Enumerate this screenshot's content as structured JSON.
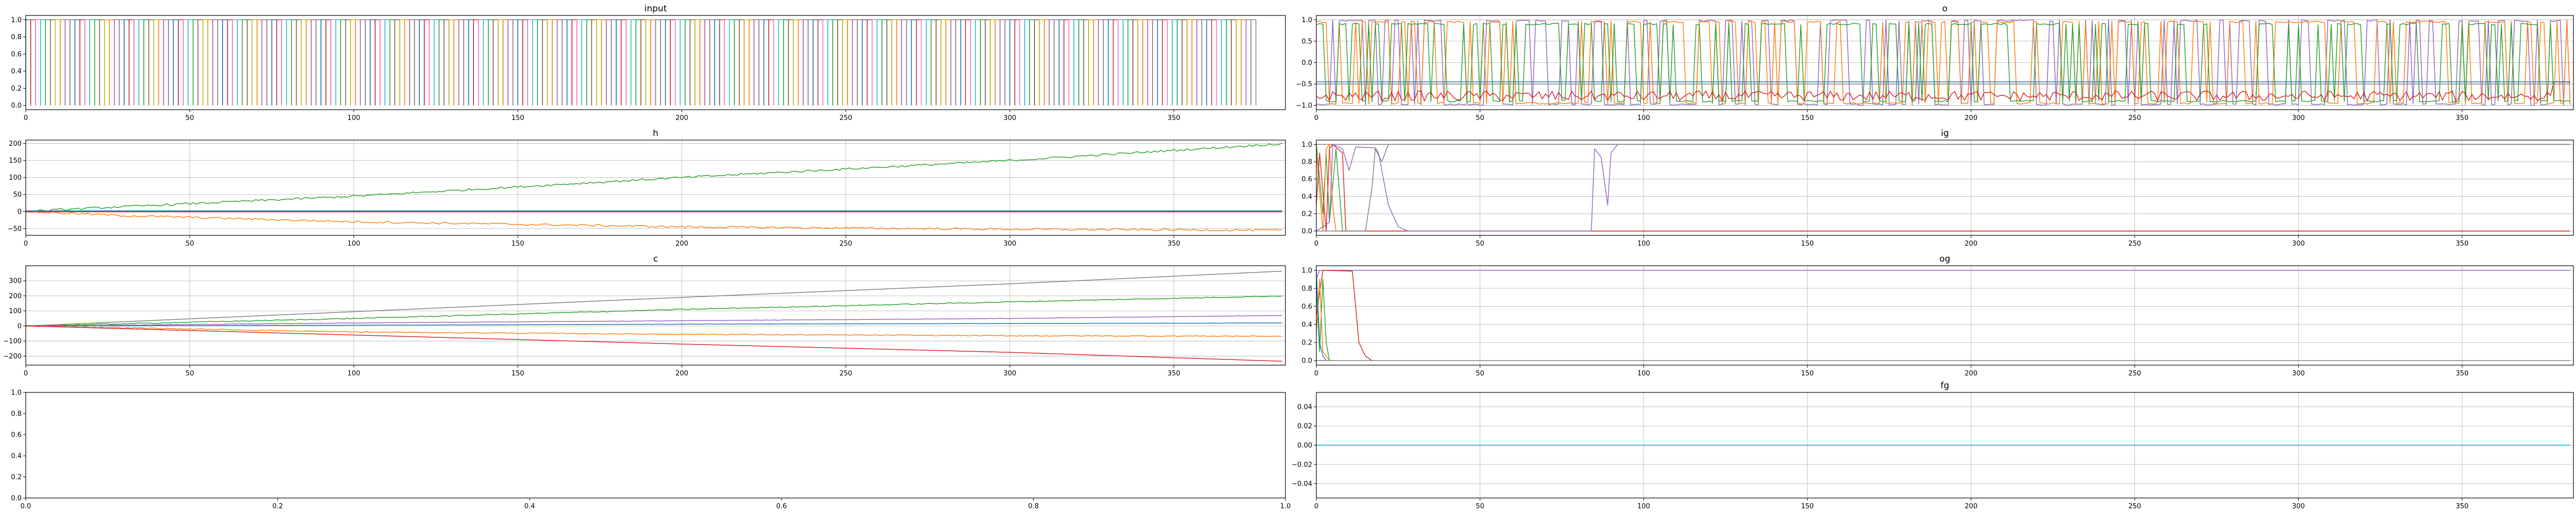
{
  "palette": {
    "c0": "#1f77b4",
    "c1": "#ff7f0e",
    "c2": "#2ca02c",
    "c3": "#d62728",
    "c4": "#9467bd",
    "c5": "#8c564b",
    "c6": "#e377c2",
    "c7": "#7f7f7f",
    "c8": "#bcbd22",
    "c9": "#17becf"
  },
  "chart_data": [
    {
      "id": "input",
      "type": "line",
      "title": "input",
      "grid": false,
      "xlim": [
        0,
        384
      ],
      "ylim": [
        -0.05,
        1.05
      ],
      "xticks": [
        0,
        50,
        100,
        150,
        200,
        250,
        300,
        350
      ],
      "yticks": [
        0.0,
        0.2,
        0.4,
        0.6,
        0.8,
        1.0
      ],
      "ytick_labels": [
        "0.0",
        "0.2",
        "0.4",
        "0.6",
        "0.8",
        "1.0"
      ],
      "series": [
        {
          "pattern": "one_hot_pulses",
          "x_range": [
            0,
            375
          ],
          "value_range": [
            0,
            1
          ],
          "count": 10
        }
      ]
    },
    {
      "id": "o",
      "type": "line",
      "title": "o",
      "grid": true,
      "xlim": [
        0,
        384
      ],
      "ylim": [
        -1.1,
        1.1
      ],
      "xticks": [
        0,
        50,
        100,
        150,
        200,
        250,
        300,
        350
      ],
      "yticks": [
        -1.0,
        -0.5,
        0.0,
        0.5,
        1.0
      ],
      "ytick_labels": [
        "−1.0",
        "−0.5",
        "0.0",
        "0.5",
        "1.0"
      ],
      "series": [
        {
          "pattern": "square_noise",
          "levels": [
            -0.98,
            0.98
          ],
          "color": "c4"
        },
        {
          "pattern": "square_noise",
          "levels": [
            -0.95,
            0.95
          ],
          "color": "c1"
        },
        {
          "pattern": "square_noise",
          "levels": [
            -0.9,
            0.9
          ],
          "color": "c2"
        },
        {
          "pattern": "noise",
          "base": -0.78,
          "amp": 0.12,
          "end": -0.45,
          "color": "c3"
        },
        {
          "pattern": "flat",
          "value": -0.45,
          "color": "c0"
        },
        {
          "pattern": "flat",
          "value": -0.5,
          "color": "c7"
        }
      ]
    },
    {
      "id": "h",
      "type": "line",
      "title": "h",
      "grid": true,
      "xlim": [
        0,
        384
      ],
      "ylim": [
        -70,
        210
      ],
      "xticks": [
        0,
        50,
        100,
        150,
        200,
        250,
        300,
        350
      ],
      "yticks": [
        -50,
        0,
        50,
        100,
        150,
        200
      ],
      "ytick_labels": [
        "−50",
        "0",
        "50",
        "100",
        "150",
        "200"
      ],
      "series": [
        {
          "pattern": "trend",
          "points": [
            [
              0,
              0
            ],
            [
              20,
              10
            ],
            [
              100,
              45
            ],
            [
              200,
              100
            ],
            [
              300,
              150
            ],
            [
              384,
              200
            ]
          ],
          "noise": 3,
          "color": "c2"
        },
        {
          "pattern": "trend",
          "points": [
            [
              0,
              0
            ],
            [
              30,
              -12
            ],
            [
              100,
              -30
            ],
            [
              200,
              -45
            ],
            [
              300,
              -52
            ],
            [
              384,
              -55
            ]
          ],
          "noise": 3,
          "color": "c1"
        },
        {
          "pattern": "flat",
          "value": 2,
          "color": "c0"
        },
        {
          "pattern": "flat",
          "value": 0,
          "color": "c4"
        },
        {
          "pattern": "flat",
          "value": -1,
          "color": "c3"
        }
      ]
    },
    {
      "id": "ig",
      "type": "line",
      "title": "ig",
      "grid": true,
      "xlim": [
        0,
        384
      ],
      "ylim": [
        -0.05,
        1.05
      ],
      "xticks": [
        0,
        50,
        100,
        150,
        200,
        250,
        300,
        350
      ],
      "yticks": [
        0.0,
        0.2,
        0.4,
        0.6,
        0.8,
        1.0
      ],
      "ytick_labels": [
        "0.0",
        "0.2",
        "0.4",
        "0.6",
        "0.8",
        "1.0"
      ],
      "series": [
        {
          "pattern": "flat",
          "value": 1.0,
          "color": "c7"
        },
        {
          "pattern": "trend",
          "points": [
            [
              0,
              1
            ],
            [
              2,
              0.2
            ],
            [
              3,
              0.9
            ],
            [
              4,
              0.1
            ],
            [
              6,
              0.95
            ],
            [
              8,
              0
            ],
            [
              384,
              0
            ]
          ],
          "noise": 0,
          "color": "c2"
        },
        {
          "pattern": "trend",
          "points": [
            [
              0,
              0.9
            ],
            [
              2,
              0
            ],
            [
              3,
              0.95
            ],
            [
              4,
              1
            ],
            [
              5,
              0.3
            ],
            [
              6,
              0
            ],
            [
              384,
              0
            ]
          ],
          "noise": 0,
          "color": "c1"
        },
        {
          "pattern": "trend",
          "points": [
            [
              0,
              0.3
            ],
            [
              1,
              0.9
            ],
            [
              3,
              0
            ],
            [
              4,
              0.95
            ],
            [
              5,
              1
            ],
            [
              8,
              0.9
            ],
            [
              9,
              0
            ],
            [
              384,
              0
            ]
          ],
          "noise": 0,
          "color": "c3"
        },
        {
          "pattern": "trend",
          "points": [
            [
              0,
              0
            ],
            [
              4,
              0.1
            ],
            [
              5,
              1
            ],
            [
              8,
              0.95
            ],
            [
              10,
              0.7
            ],
            [
              12,
              0.97
            ],
            [
              18,
              0.96
            ],
            [
              19,
              0.9
            ],
            [
              22,
              0.3
            ],
            [
              25,
              0.05
            ],
            [
              28,
              0
            ],
            [
              84,
              0
            ],
            [
              85,
              0.95
            ],
            [
              87,
              0.85
            ],
            [
              89,
              0.3
            ],
            [
              90,
              0.9
            ],
            [
              92,
              1
            ],
            [
              384,
              1
            ]
          ],
          "noise": 0,
          "color": "c4"
        },
        {
          "pattern": "trend",
          "points": [
            [
              0,
              0
            ],
            [
              15,
              0
            ],
            [
              17,
              0.5
            ],
            [
              18,
              0.95
            ],
            [
              20,
              0.8
            ],
            [
              22,
              1
            ],
            [
              24,
              1
            ],
            [
              384,
              1
            ]
          ],
          "noise": 0,
          "color": "c7"
        }
      ]
    },
    {
      "id": "c",
      "type": "line",
      "title": "c",
      "grid": true,
      "xlim": [
        0,
        384
      ],
      "ylim": [
        -260,
        400
      ],
      "xticks": [
        0,
        50,
        100,
        150,
        200,
        250,
        300,
        350
      ],
      "yticks": [
        -200,
        -100,
        0,
        100,
        200,
        300
      ],
      "ytick_labels": [
        "−200",
        "−100",
        "0",
        "100",
        "200",
        "300"
      ],
      "series": [
        {
          "pattern": "trend",
          "points": [
            [
              0,
              0
            ],
            [
              100,
              95
            ],
            [
              200,
              190
            ],
            [
              300,
              280
            ],
            [
              384,
              365
            ]
          ],
          "noise": 0,
          "color": "c7"
        },
        {
          "pattern": "trend",
          "points": [
            [
              0,
              0
            ],
            [
              100,
              50
            ],
            [
              200,
              110
            ],
            [
              300,
              160
            ],
            [
              384,
              200
            ]
          ],
          "noise": 3,
          "color": "c2"
        },
        {
          "pattern": "trend",
          "points": [
            [
              0,
              0
            ],
            [
              100,
              20
            ],
            [
              200,
              35
            ],
            [
              300,
              50
            ],
            [
              384,
              70
            ]
          ],
          "noise": 1,
          "color": "c4"
        },
        {
          "pattern": "trend",
          "points": [
            [
              0,
              0
            ],
            [
              100,
              5
            ],
            [
              200,
              12
            ],
            [
              384,
              20
            ]
          ],
          "noise": 0.5,
          "color": "c0"
        },
        {
          "pattern": "trend",
          "points": [
            [
              0,
              0
            ],
            [
              100,
              -40
            ],
            [
              200,
              -55
            ],
            [
              300,
              -65
            ],
            [
              384,
              -68
            ]
          ],
          "noise": 3,
          "color": "c1"
        },
        {
          "pattern": "trend",
          "points": [
            [
              0,
              0
            ],
            [
              100,
              -60
            ],
            [
              200,
              -120
            ],
            [
              300,
              -175
            ],
            [
              384,
              -235
            ]
          ],
          "noise": 0,
          "color": "c3"
        }
      ]
    },
    {
      "id": "og",
      "type": "line",
      "title": "og",
      "grid": true,
      "xlim": [
        0,
        384
      ],
      "ylim": [
        -0.05,
        1.05
      ],
      "xticks": [
        0,
        50,
        100,
        150,
        200,
        250,
        300,
        350
      ],
      "yticks": [
        0.0,
        0.2,
        0.4,
        0.6,
        0.8,
        1.0
      ],
      "ytick_labels": [
        "0.0",
        "0.2",
        "0.4",
        "0.6",
        "0.8",
        "1.0"
      ],
      "series": [
        {
          "pattern": "flat",
          "value": 1.0,
          "color": "c6"
        },
        {
          "pattern": "trend",
          "points": [
            [
              0,
              0.9
            ],
            [
              1,
              1
            ],
            [
              384,
              1
            ]
          ],
          "noise": 0,
          "color": "c4"
        },
        {
          "pattern": "trend",
          "points": [
            [
              0,
              0.5
            ],
            [
              2,
              1
            ],
            [
              11,
              0.99
            ],
            [
              12,
              0.6
            ],
            [
              13,
              0.2
            ],
            [
              15,
              0.05
            ],
            [
              17,
              0
            ],
            [
              384,
              0
            ]
          ],
          "noise": 0,
          "color": "c3"
        },
        {
          "pattern": "trend",
          "points": [
            [
              0,
              0.8
            ],
            [
              1,
              0.1
            ],
            [
              2,
              0.9
            ],
            [
              3,
              0.2
            ],
            [
              4,
              0
            ],
            [
              384,
              0
            ]
          ],
          "noise": 0,
          "color": "c2"
        },
        {
          "pattern": "trend",
          "points": [
            [
              0,
              0.3
            ],
            [
              1,
              0.9
            ],
            [
              2,
              0.1
            ],
            [
              3,
              0.05
            ],
            [
              4,
              0
            ],
            [
              384,
              0
            ]
          ],
          "noise": 0,
          "color": "c1"
        },
        {
          "pattern": "trend",
          "points": [
            [
              0,
              1
            ],
            [
              1,
              0.2
            ],
            [
              2,
              0.05
            ],
            [
              3,
              0
            ],
            [
              384,
              0
            ]
          ],
          "noise": 0,
          "color": "c0"
        },
        {
          "pattern": "flat",
          "value": 0,
          "color": "c7"
        }
      ]
    },
    {
      "id": "empty",
      "type": "line",
      "title": "",
      "grid": false,
      "xlim": [
        0,
        1
      ],
      "ylim": [
        0,
        1
      ],
      "xticks": [
        0,
        0.2,
        0.4,
        0.6,
        0.8,
        1.0
      ],
      "xtick_labels": [
        "0.0",
        "0.2",
        "0.4",
        "0.6",
        "0.8",
        "1.0"
      ],
      "yticks": [
        0,
        0.2,
        0.4,
        0.6,
        0.8,
        1.0
      ],
      "ytick_labels": [
        "0.0",
        "0.2",
        "0.4",
        "0.6",
        "0.8",
        "1.0"
      ],
      "series": []
    },
    {
      "id": "fg",
      "type": "line",
      "title": "fg",
      "grid": true,
      "xlim": [
        0,
        384
      ],
      "ylim": [
        -0.055,
        0.055
      ],
      "xticks": [
        0,
        50,
        100,
        150,
        200,
        250,
        300,
        350
      ],
      "yticks": [
        -0.04,
        -0.02,
        0.0,
        0.02,
        0.04
      ],
      "ytick_labels": [
        "−0.04",
        "−0.02",
        "0.00",
        "0.02",
        "0.04"
      ],
      "series": [
        {
          "pattern": "flat",
          "value": 0,
          "color": "c0"
        },
        {
          "pattern": "flat",
          "value": 0,
          "color": "c9"
        }
      ]
    }
  ]
}
